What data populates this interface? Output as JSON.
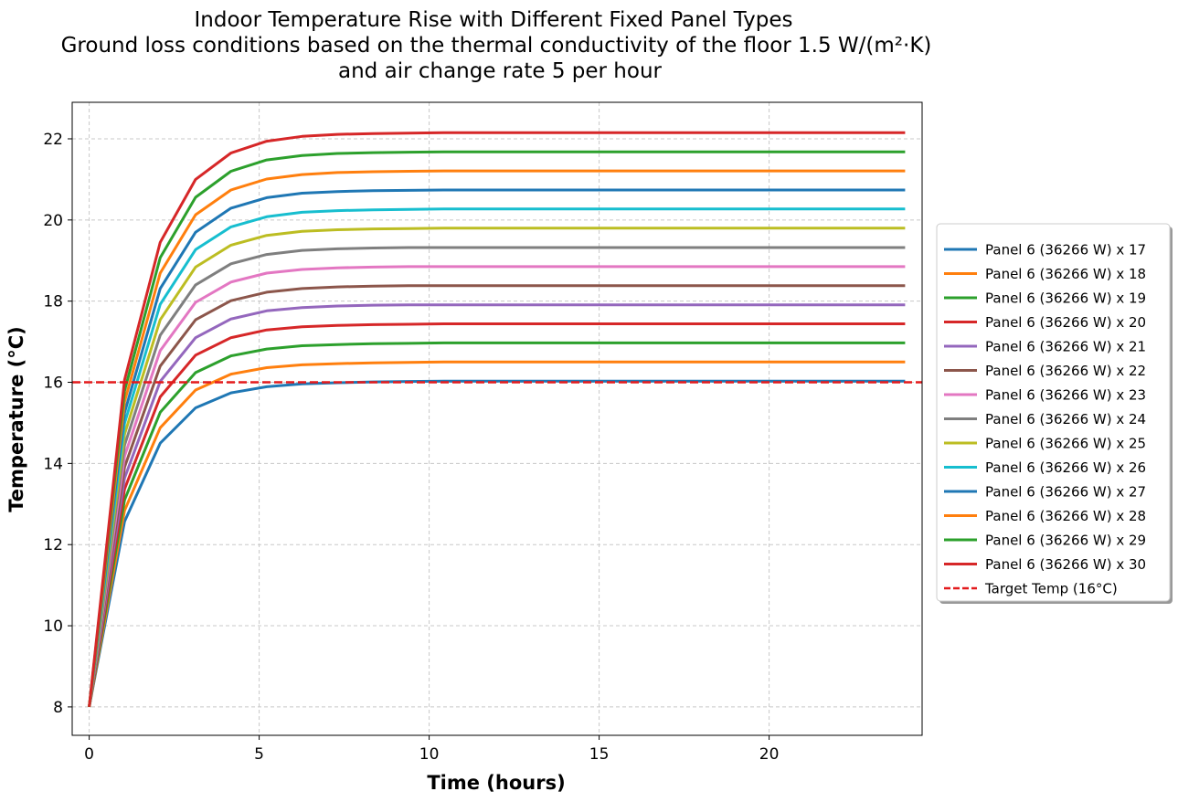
{
  "chart_data": {
    "type": "line",
    "title_lines": [
      "Indoor Temperature Rise with Different Fixed Panel Types",
      "Ground loss conditions based on the thermal conductivity of the floor 1.5 W/(m²·K)",
      "and air change rate 5 per hour"
    ],
    "xlabel": "Time (hours)",
    "ylabel": "Temperature (°C)",
    "xlim": [
      -0.5,
      24.5
    ],
    "ylim": [
      7.3,
      22.9
    ],
    "xticks": [
      0,
      5,
      10,
      15,
      20
    ],
    "yticks": [
      8,
      10,
      12,
      14,
      16,
      18,
      20,
      22
    ],
    "grid": true,
    "legend_position": "outside right",
    "x": [
      0,
      1.04,
      2.09,
      3.13,
      4.17,
      5.22,
      6.26,
      7.3,
      8.35,
      9.39,
      10.43,
      12,
      15,
      20,
      24
    ],
    "series": [
      {
        "name": "Panel 6 (36266 W) x 17",
        "color": "#1f77b4",
        "values": [
          8.0,
          12.57,
          14.5,
          15.37,
          15.74,
          15.89,
          15.96,
          15.99,
          16.01,
          16.02,
          16.03,
          16.03,
          16.03,
          16.03,
          16.03
        ]
      },
      {
        "name": "Panel 6 (36266 W) x 18",
        "color": "#ff7f0e",
        "values": [
          8.0,
          12.84,
          14.88,
          15.81,
          16.2,
          16.36,
          16.43,
          16.46,
          16.48,
          16.49,
          16.5,
          16.5,
          16.5,
          16.5,
          16.5
        ]
      },
      {
        "name": "Panel 6 (36266 W) x 19",
        "color": "#2ca02c",
        "values": [
          8.0,
          13.1,
          15.26,
          16.24,
          16.65,
          16.82,
          16.9,
          16.93,
          16.95,
          16.96,
          16.97,
          16.97,
          16.97,
          16.97,
          16.97
        ]
      },
      {
        "name": "Panel 6 (36266 W) x 20",
        "color": "#d62728",
        "values": [
          8.0,
          13.37,
          15.64,
          16.67,
          17.1,
          17.29,
          17.37,
          17.4,
          17.42,
          17.43,
          17.44,
          17.44,
          17.44,
          17.44,
          17.44
        ]
      },
      {
        "name": "Panel 6 (36266 W) x 21",
        "color": "#9467bd",
        "values": [
          8.0,
          13.64,
          16.02,
          17.1,
          17.56,
          17.76,
          17.84,
          17.88,
          17.9,
          17.91,
          17.91,
          17.91,
          17.91,
          17.91,
          17.91
        ]
      },
      {
        "name": "Panel 6 (36266 W) x 22",
        "color": "#8c564b",
        "values": [
          8.0,
          13.91,
          16.4,
          17.54,
          18.01,
          18.22,
          18.31,
          18.35,
          18.37,
          18.38,
          18.38,
          18.38,
          18.38,
          18.38,
          18.38
        ]
      },
      {
        "name": "Panel 6 (36266 W) x 23",
        "color": "#e377c2",
        "values": [
          8.0,
          14.18,
          16.78,
          17.97,
          18.47,
          18.69,
          18.78,
          18.82,
          18.84,
          18.85,
          18.85,
          18.85,
          18.85,
          18.85,
          18.85
        ]
      },
      {
        "name": "Panel 6 (36266 W) x 24",
        "color": "#7f7f7f",
        "values": [
          8.0,
          14.45,
          17.16,
          18.4,
          18.92,
          19.15,
          19.25,
          19.29,
          19.31,
          19.32,
          19.32,
          19.32,
          19.32,
          19.32,
          19.32
        ]
      },
      {
        "name": "Panel 6 (36266 W) x 25",
        "color": "#bcbd22",
        "values": [
          8.0,
          14.72,
          17.54,
          18.84,
          19.38,
          19.62,
          19.72,
          19.76,
          19.78,
          19.79,
          19.8,
          19.8,
          19.8,
          19.8,
          19.8
        ]
      },
      {
        "name": "Panel 6 (36266 W) x 26",
        "color": "#17becf",
        "values": [
          8.0,
          14.99,
          17.92,
          19.27,
          19.83,
          20.08,
          20.19,
          20.23,
          20.25,
          20.26,
          20.27,
          20.27,
          20.27,
          20.27,
          20.27
        ]
      },
      {
        "name": "Panel 6 (36266 W) x 27",
        "color": "#1f77b4",
        "values": [
          8.0,
          15.25,
          18.31,
          19.7,
          20.29,
          20.55,
          20.66,
          20.7,
          20.72,
          20.73,
          20.74,
          20.74,
          20.74,
          20.74,
          20.74
        ]
      },
      {
        "name": "Panel 6 (36266 W) x 28",
        "color": "#ff7f0e",
        "values": [
          8.0,
          15.52,
          18.69,
          20.13,
          20.74,
          21.01,
          21.12,
          21.17,
          21.19,
          21.2,
          21.21,
          21.21,
          21.21,
          21.21,
          21.21
        ]
      },
      {
        "name": "Panel 6 (36266 W) x 29",
        "color": "#2ca02c",
        "values": [
          8.0,
          15.79,
          19.07,
          20.56,
          21.2,
          21.48,
          21.59,
          21.64,
          21.66,
          21.67,
          21.68,
          21.68,
          21.68,
          21.68,
          21.68
        ]
      },
      {
        "name": "Panel 6 (36266 W) x 30",
        "color": "#d62728",
        "values": [
          8.0,
          16.06,
          19.45,
          21.0,
          21.65,
          21.94,
          22.06,
          22.11,
          22.13,
          22.14,
          22.15,
          22.15,
          22.15,
          22.15,
          22.15
        ]
      }
    ],
    "target": {
      "name": "Target Temp (16°C)",
      "value": 16,
      "color": "#e31a1c",
      "style": "dashed"
    }
  }
}
